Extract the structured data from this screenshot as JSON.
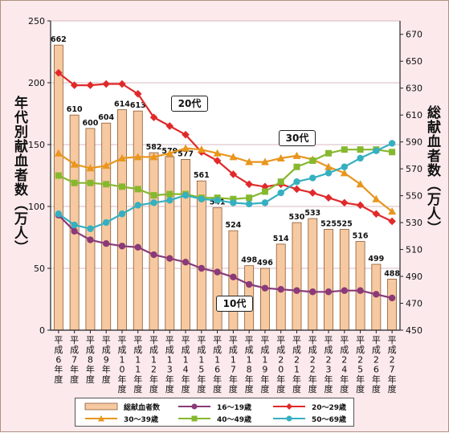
{
  "chart_data": {
    "type": "bar+line",
    "categories": [
      "平成6年度",
      "平成7年度",
      "平成8年度",
      "平成9年度",
      "平成10年度",
      "平成11年度",
      "平成12年度",
      "平成13年度",
      "平成14年度",
      "平成15年度",
      "平成16年度",
      "平成17年度",
      "平成18年度",
      "平成19年度",
      "平成20年度",
      "平成21年度",
      "平成22年度",
      "平成23年度",
      "平成24年度",
      "平成25年度",
      "平成26年度",
      "平成27年度"
    ],
    "category_labels": [
      "平成6年度",
      "平成7年度",
      "平成8年度",
      "平成9年度",
      "平成10年度",
      "平成11年度",
      "平成12年度",
      "平成13年度",
      "平成14年度",
      "平成15年度",
      "平成16年度",
      "平成17年度",
      "平成18年度",
      "平成19年度",
      "平成20年度",
      "平成21年度",
      "平成22年度",
      "平成23年度",
      "平成24年度",
      "平成25年度",
      "平成26年度",
      "平成27年度"
    ],
    "bar_series": {
      "name": "総献血者数",
      "axis": "right",
      "values": [
        662,
        610,
        600,
        604,
        614,
        613,
        582,
        579,
        577,
        561,
        541,
        524,
        498,
        496,
        514,
        530,
        533,
        525,
        525,
        516,
        499,
        488
      ],
      "color": "#f7c9a0",
      "stroke": "#8a5a36"
    },
    "line_series": [
      {
        "name": "16〜19歳",
        "color": "#8a3a78",
        "marker": "circle",
        "values": [
          93,
          80,
          73,
          70,
          68,
          67,
          61,
          58,
          55,
          50,
          47,
          43,
          37,
          34,
          33,
          32,
          31,
          31,
          32,
          32,
          29,
          26
        ]
      },
      {
        "name": "20〜29歳",
        "color": "#e02a2a",
        "marker": "diamond",
        "values": [
          208,
          198,
          198,
          199,
          199,
          191,
          172,
          165,
          158,
          144,
          137,
          126,
          118,
          116,
          118,
          114,
          111,
          107,
          103,
          101,
          94,
          88
        ]
      },
      {
        "name": "30〜39歳",
        "color": "#e8961e",
        "marker": "triangle",
        "values": [
          143,
          134,
          131,
          133,
          139,
          140,
          140,
          143,
          147,
          146,
          143,
          140,
          136,
          136,
          139,
          141,
          138,
          132,
          127,
          118,
          106,
          96
        ]
      },
      {
        "name": "40〜49歳",
        "color": "#86b82e",
        "marker": "square",
        "values": [
          125,
          119,
          119,
          118,
          116,
          114,
          109,
          110,
          110,
          107,
          107,
          106,
          107,
          112,
          120,
          132,
          137,
          143,
          146,
          146,
          146,
          144
        ]
      },
      {
        "name": "50〜69歳",
        "color": "#35b0c0",
        "marker": "circle",
        "values": [
          94,
          85,
          82,
          87,
          94,
          101,
          103,
          105,
          109,
          106,
          105,
          103,
          102,
          103,
          111,
          120,
          123,
          127,
          132,
          139,
          145,
          151
        ]
      }
    ],
    "ylabel_left": "年代別献血者数（万人）",
    "ylabel_right": "総献血者数（万人）",
    "ylim_left": [
      0,
      250
    ],
    "yticks_left": [
      0,
      50,
      100,
      150,
      200,
      250
    ],
    "ylim_right": [
      450,
      680
    ],
    "yticks_right": [
      450,
      470,
      490,
      510,
      530,
      550,
      570,
      590,
      610,
      630,
      650,
      670
    ],
    "grid": "horizontal",
    "legend_position": "bottom",
    "annotations": [
      "20代",
      "30代",
      "10代"
    ]
  },
  "colors": {
    "background": "#fbe9ec",
    "plot_background": "#ffffff",
    "grid": "#d8b8c0"
  }
}
